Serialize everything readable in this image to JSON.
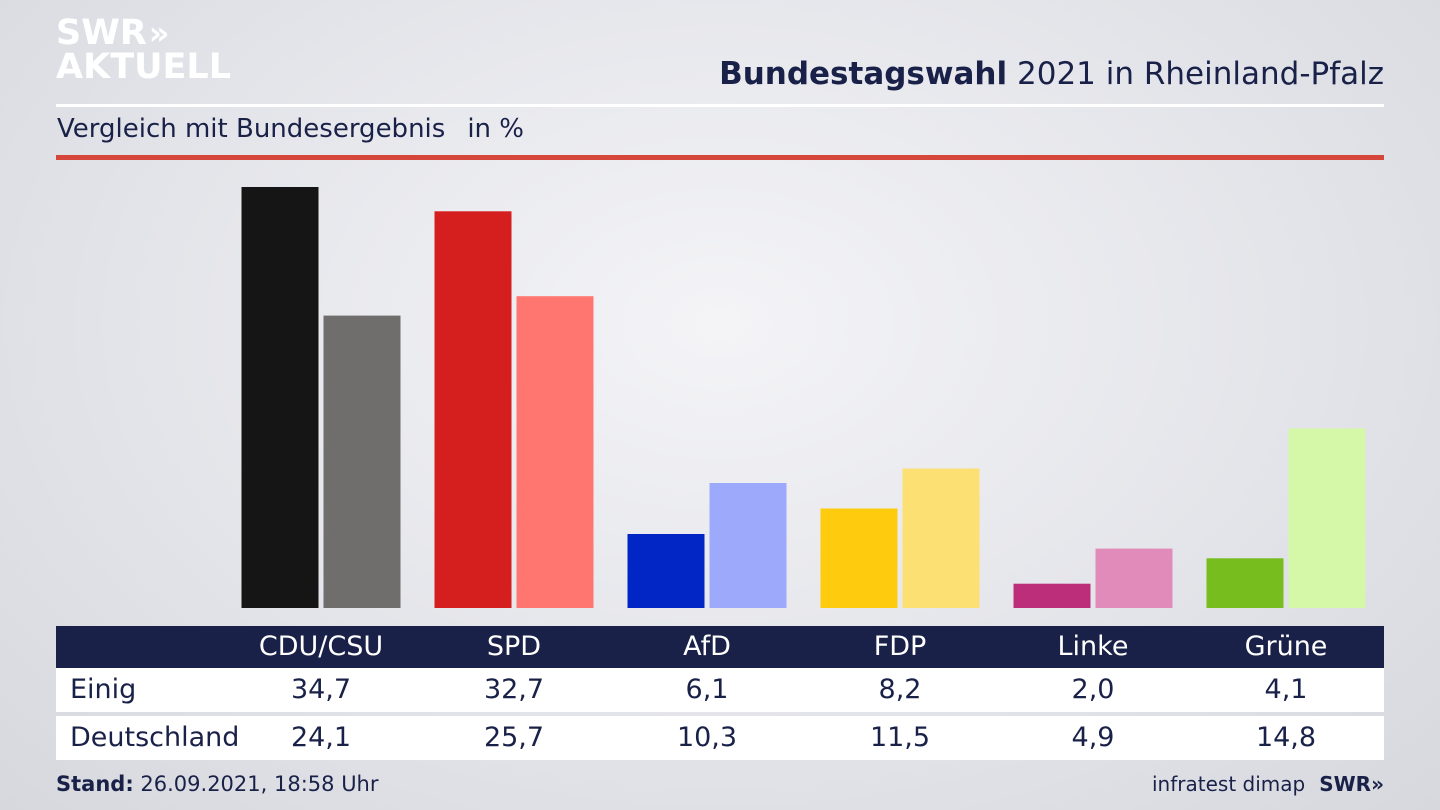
{
  "brand": {
    "line1": "SWR",
    "arrows": "»",
    "line2": "AKTUELL"
  },
  "header": {
    "title_bold": "Bundestagswahl",
    "title_rest": "2021 in Rheinland-Pfalz"
  },
  "subtitle": {
    "text": "Vergleich mit Bundesergebnis",
    "unit": "in %"
  },
  "colors": {
    "header_bg": "#1a2148",
    "accent_rule": "#d5473a",
    "CDU/CSU": [
      "#151515",
      "#6f6e6c"
    ],
    "SPD": [
      "#d51e1e",
      "#ff7670"
    ],
    "AfD": [
      "#0225c6",
      "#9daafb"
    ],
    "FDP": [
      "#fecb0e",
      "#fde074"
    ],
    "Linke": [
      "#bc2e79",
      "#e18bba"
    ],
    "Grüne": [
      "#77bd1e",
      "#d5f7a8"
    ]
  },
  "chart_data": {
    "type": "bar",
    "categories": [
      "CDU/CSU",
      "SPD",
      "AfD",
      "FDP",
      "Linke",
      "Grüne"
    ],
    "series": [
      {
        "name": "Einig",
        "values": [
          34.7,
          32.7,
          6.1,
          8.2,
          2.0,
          4.1
        ]
      },
      {
        "name": "Deutschland",
        "values": [
          24.1,
          25.7,
          10.3,
          11.5,
          4.9,
          14.8
        ]
      }
    ],
    "ylim": [
      0,
      35
    ],
    "grid": false,
    "legend": "table-below"
  },
  "table": {
    "headers": [
      "CDU/CSU",
      "SPD",
      "AfD",
      "FDP",
      "Linke",
      "Grüne"
    ],
    "rows": [
      {
        "label": "Einig",
        "values": [
          "34,7",
          "32,7",
          "6,1",
          "8,2",
          "2,0",
          "4,1"
        ]
      },
      {
        "label": "Deutschland",
        "values": [
          "24,1",
          "25,7",
          "10,3",
          "11,5",
          "4,9",
          "14,8"
        ]
      }
    ]
  },
  "footer": {
    "stand_label": "Stand:",
    "stand_value": "26.09.2021, 18:58 Uhr",
    "source": "infratest dimap",
    "brand": "SWR",
    "brand_arrows": "»"
  }
}
